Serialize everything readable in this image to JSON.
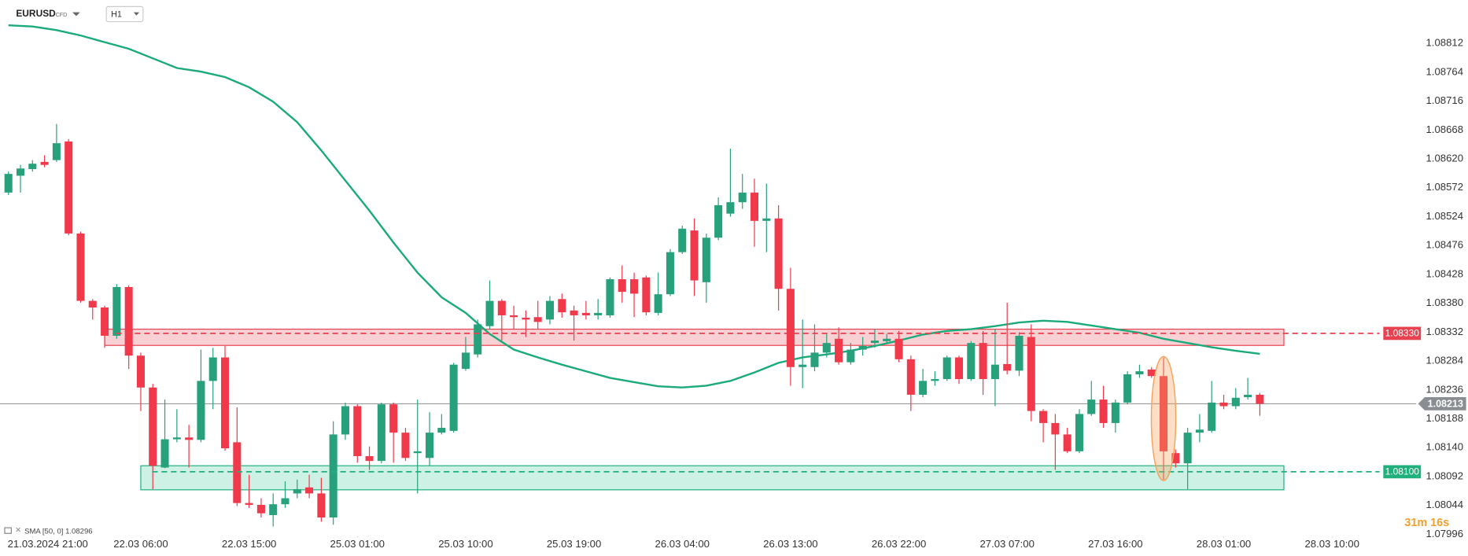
{
  "chart_data": {
    "type": "candlestick",
    "symbol": "EURUSD",
    "instrument_type": "CFD",
    "timeframe": "H1",
    "timer": "31m 16s",
    "up_color": "#26a17b",
    "down_color": "#f0394b",
    "xlim": [
      -0.7,
      121.3
    ],
    "ylim": [
      1.07996,
      1.08884
    ],
    "yticks": [
      {
        "value": 1.08812,
        "label": "1.08812"
      },
      {
        "value": 1.08764,
        "label": "1.08764"
      },
      {
        "value": 1.08716,
        "label": "1.08716"
      },
      {
        "value": 1.08668,
        "label": "1.08668"
      },
      {
        "value": 1.0862,
        "label": "1.08620"
      },
      {
        "value": 1.08572,
        "label": "1.08572"
      },
      {
        "value": 1.08524,
        "label": "1.08524"
      },
      {
        "value": 1.08476,
        "label": "1.08476"
      },
      {
        "value": 1.08428,
        "label": "1.08428"
      },
      {
        "value": 1.0838,
        "label": "1.08380"
      },
      {
        "value": 1.08332,
        "label": "1.08332"
      },
      {
        "value": 1.08284,
        "label": "1.08284"
      },
      {
        "value": 1.08236,
        "label": "1.08236"
      },
      {
        "value": 1.08188,
        "label": "1.08188"
      },
      {
        "value": 1.0814,
        "label": "1.08140"
      },
      {
        "value": 1.08092,
        "label": "1.08092"
      },
      {
        "value": 1.08044,
        "label": "1.08044"
      },
      {
        "value": 1.07996,
        "label": "1.07996"
      }
    ],
    "xticks": [
      {
        "value": 2,
        "label": "21.03.2024 21:00"
      },
      {
        "value": 11,
        "label": "22.03 06:00"
      },
      {
        "value": 20,
        "label": "22.03 15:00"
      },
      {
        "value": 29,
        "label": "25.03 01:00"
      },
      {
        "value": 38,
        "label": "25.03 10:00"
      },
      {
        "value": 47,
        "label": "25.03 19:00"
      },
      {
        "value": 56,
        "label": "26.03 04:00"
      },
      {
        "value": 65,
        "label": "26.03 13:00"
      },
      {
        "value": 74,
        "label": "26.03 22:00"
      },
      {
        "value": 83,
        "label": "27.03 07:00"
      },
      {
        "value": 92,
        "label": "27.03 16:00"
      },
      {
        "value": 101,
        "label": "28.03 01:00"
      },
      {
        "value": 110,
        "label": "28.03 10:00"
      }
    ],
    "open": [
      1.08564,
      1.08592,
      1.08603,
      1.08615,
      1.08618,
      1.08649,
      1.08496,
      1.08384,
      1.08373,
      1.08326,
      1.08407,
      1.08293,
      1.0824,
      1.08107,
      1.08154,
      1.08157,
      1.08153,
      1.08251,
      1.0829,
      1.08149,
      1.08048,
      1.08045,
      1.08028,
      1.08046,
      1.08064,
      1.08074,
      1.08064,
      1.08024,
      1.08162,
      1.08209,
      1.08126,
      1.08118,
      1.08212,
      1.08165,
      1.08131,
      1.08123,
      1.08165,
      1.08168,
      1.08271,
      1.08295,
      1.08342,
      1.08384,
      1.0836,
      1.08356,
      1.08357,
      1.08353,
      1.08387,
      1.08368,
      1.08364,
      1.0836,
      1.0836,
      1.0842,
      1.0842,
      1.08423,
      1.08364,
      1.08395,
      1.08465,
      1.08501,
      1.08415,
      1.08489,
      1.08529,
      1.08548,
      1.08564,
      1.08517,
      1.08521,
      1.08404,
      1.08274,
      1.08274,
      1.08298,
      1.08321,
      1.08282,
      1.08303,
      1.08314,
      1.08317,
      1.08321,
      1.08287,
      1.08228,
      1.08251,
      1.08254,
      1.0829,
      1.08254,
      1.08314,
      1.08254,
      1.08279,
      1.08268,
      1.08324,
      1.08201,
      1.08181,
      1.08162,
      1.08134,
      1.08196,
      1.0822,
      1.08181,
      1.08215,
      1.08262,
      1.0827,
      1.08259,
      1.08131,
      1.08114,
      1.08165,
      1.08168,
      1.08215,
      1.08209,
      1.08224,
      1.08228
    ],
    "high": [
      1.08599,
      1.0861,
      1.08618,
      1.08626,
      1.08678,
      1.08653,
      1.08499,
      1.08387,
      1.08376,
      1.08412,
      1.0841,
      1.08298,
      1.08246,
      1.0822,
      1.08204,
      1.08178,
      1.08303,
      1.08306,
      1.08309,
      1.08207,
      1.08095,
      1.08056,
      1.08064,
      1.08084,
      1.08087,
      1.08095,
      1.0809,
      1.08184,
      1.08215,
      1.08212,
      1.08142,
      1.08215,
      1.08215,
      1.08173,
      1.0822,
      1.08199,
      1.08196,
      1.08281,
      1.08324,
      1.08353,
      1.08418,
      1.08387,
      1.08376,
      1.08368,
      1.08384,
      1.08392,
      1.08396,
      1.08376,
      1.08384,
      1.08387,
      1.08423,
      1.08443,
      1.08431,
      1.08426,
      1.08431,
      1.0847,
      1.08509,
      1.08521,
      1.08496,
      1.08556,
      1.08637,
      1.08595,
      1.08587,
      1.08579,
      1.08543,
      1.08439,
      1.08353,
      1.08345,
      1.08329,
      1.0834,
      1.08314,
      1.08324,
      1.08337,
      1.08329,
      1.08334,
      1.08293,
      1.08271,
      1.08267,
      1.08293,
      1.08293,
      1.08317,
      1.08334,
      1.08337,
      1.08381,
      1.08332,
      1.08345,
      1.08204,
      1.08196,
      1.08173,
      1.08204,
      1.08251,
      1.08243,
      1.0822,
      1.08267,
      1.08278,
      1.08274,
      1.0829,
      1.08137,
      1.08173,
      1.08196,
      1.08251,
      1.08228,
      1.08239,
      1.08256,
      1.08231
    ],
    "low": [
      1.0856,
      1.08564,
      1.08599,
      1.08606,
      1.08615,
      1.08493,
      1.08381,
      1.08353,
      1.08306,
      1.08321,
      1.08271,
      1.08201,
      1.08071,
      1.08106,
      1.08149,
      1.08107,
      1.08149,
      1.08204,
      1.08135,
      1.08043,
      1.0804,
      1.08024,
      1.08009,
      1.0804,
      1.08056,
      1.08056,
      1.08017,
      1.08012,
      1.08153,
      1.08115,
      1.08103,
      1.08114,
      1.08115,
      1.08118,
      1.08064,
      1.0811,
      1.08162,
      1.08165,
      1.08268,
      1.0829,
      1.08337,
      1.08318,
      1.08337,
      1.08324,
      1.08337,
      1.08345,
      1.08356,
      1.08318,
      1.08353,
      1.08353,
      1.08356,
      1.08381,
      1.08357,
      1.0836,
      1.0836,
      1.08392,
      1.08462,
      1.08392,
      1.08381,
      1.08485,
      1.08524,
      1.08537,
      1.08474,
      1.08465,
      1.08368,
      1.08243,
      1.08239,
      1.08267,
      1.0829,
      1.08278,
      1.08278,
      1.08293,
      1.08306,
      1.08314,
      1.08282,
      1.08201,
      1.08224,
      1.08243,
      1.08251,
      1.08246,
      1.08251,
      1.08228,
      1.08209,
      1.08262,
      1.08259,
      1.08184,
      1.08149,
      1.08103,
      1.08131,
      1.08131,
      1.08193,
      1.08173,
      1.08165,
      1.08212,
      1.08256,
      1.08256,
      1.08087,
      1.08107,
      1.08071,
      1.08149,
      1.08165,
      1.08204,
      1.08204,
      1.0822,
      1.08193
    ],
    "close": [
      1.08595,
      1.08604,
      1.08612,
      1.0861,
      1.08646,
      1.08496,
      1.08384,
      1.08373,
      1.08326,
      1.08407,
      1.08293,
      1.0824,
      1.0811,
      1.08154,
      1.08157,
      1.08153,
      1.08251,
      1.0829,
      1.08139,
      1.08048,
      1.08045,
      1.08031,
      1.08046,
      1.08056,
      1.08071,
      1.08064,
      1.08024,
      1.08162,
      1.08209,
      1.08126,
      1.08118,
      1.08212,
      1.08165,
      1.08123,
      1.08134,
      1.08165,
      1.08173,
      1.08278,
      1.08298,
      1.08345,
      1.08384,
      1.0836,
      1.08357,
      1.08353,
      1.08349,
      1.08384,
      1.08365,
      1.0836,
      1.0836,
      1.08364,
      1.0842,
      1.08399,
      1.08396,
      1.08365,
      1.08395,
      1.08465,
      1.08504,
      1.08418,
      1.08489,
      1.08543,
      1.08548,
      1.08564,
      1.08517,
      1.08521,
      1.08404,
      1.08274,
      1.08278,
      1.08298,
      1.08314,
      1.08282,
      1.08303,
      1.08309,
      1.08318,
      1.08321,
      1.08287,
      1.08228,
      1.08251,
      1.08254,
      1.0829,
      1.08254,
      1.08314,
      1.08254,
      1.08278,
      1.08268,
      1.08326,
      1.08201,
      1.08181,
      1.08162,
      1.08134,
      1.08196,
      1.0822,
      1.08181,
      1.08215,
      1.08262,
      1.08267,
      1.08259,
      1.08134,
      1.08114,
      1.08165,
      1.0817,
      1.08215,
      1.08209,
      1.08223,
      1.08228,
      1.08213
    ],
    "sma": {
      "label": "SMA [50, 0] 1.08296",
      "color": "#1aaa7c",
      "x": [
        0,
        2,
        4,
        6,
        8,
        10,
        12,
        14,
        16,
        18,
        20,
        22,
        24,
        26,
        28,
        30,
        32,
        34,
        36,
        38,
        40,
        42,
        44,
        46,
        48,
        50,
        52,
        54,
        56,
        58,
        60,
        62,
        64,
        66,
        68,
        70,
        72,
        74,
        76,
        78,
        80,
        82,
        84,
        86,
        88,
        90,
        92,
        94,
        96,
        98,
        100,
        102,
        104
      ],
      "values": [
        1.08842,
        1.0884,
        1.08834,
        1.08825,
        1.08814,
        1.08803,
        1.08787,
        1.08771,
        1.08765,
        1.08756,
        1.08739,
        1.08715,
        1.08681,
        1.08634,
        1.08584,
        1.08534,
        1.08481,
        1.08431,
        1.0839,
        1.08364,
        1.08329,
        1.08303,
        1.0829,
        1.08278,
        1.08267,
        1.08256,
        1.08249,
        1.08242,
        1.0824,
        1.08243,
        1.08251,
        1.08265,
        1.08281,
        1.0829,
        1.08295,
        1.08301,
        1.08309,
        1.08318,
        1.08328,
        1.08334,
        1.08337,
        1.08342,
        1.08348,
        1.08351,
        1.08349,
        1.08343,
        1.08337,
        1.08331,
        1.08321,
        1.08314,
        1.08307,
        1.08301,
        1.08296
      ]
    },
    "levels": [
      {
        "value": 1.0833,
        "label": "1.08330",
        "color": "#e8414f",
        "fill": "#f8c8cb",
        "zone": [
          1.0831,
          1.08337
        ],
        "x_range": [
          8,
          106
        ]
      },
      {
        "value": 1.081,
        "label": "1.08100",
        "color": "#1fb07e",
        "fill": "#c4eedf",
        "zone": [
          1.0807,
          1.0811
        ],
        "x_range": [
          11,
          106
        ]
      }
    ],
    "current_price": {
      "value": 1.08213,
      "label": "1.08213"
    },
    "highlight": {
      "index": 96,
      "color": "#f5a35c"
    }
  }
}
